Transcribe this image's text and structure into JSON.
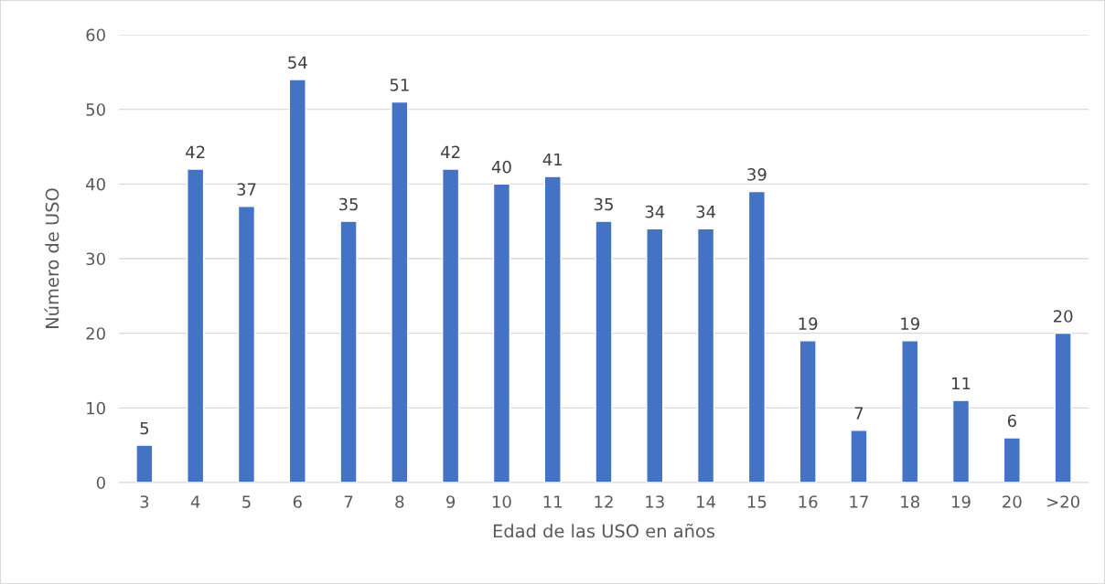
{
  "chart_data": {
    "type": "bar",
    "xlabel": "Edad de las USO en años",
    "ylabel": "Número de USO",
    "categories": [
      "3",
      "4",
      "5",
      "6",
      "7",
      "8",
      "9",
      "10",
      "11",
      "12",
      "13",
      "14",
      "15",
      "16",
      "17",
      "18",
      "19",
      "20",
      ">20"
    ],
    "values": [
      5,
      42,
      37,
      54,
      35,
      51,
      42,
      40,
      41,
      35,
      34,
      34,
      39,
      19,
      7,
      19,
      11,
      6,
      20
    ],
    "color": "#4472c4",
    "ylim": [
      0,
      60
    ],
    "yticks": [
      0,
      10,
      20,
      30,
      40,
      50,
      60
    ],
    "grid": "y",
    "data_labels": true
  }
}
